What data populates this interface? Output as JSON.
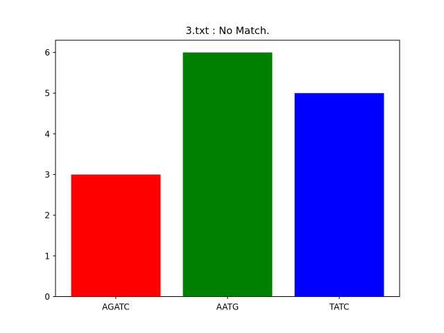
{
  "chart_data": {
    "type": "bar",
    "title": "3.txt : No Match.",
    "xlabel": "",
    "ylabel": "",
    "categories": [
      "AGATC",
      "AATG",
      "TATC"
    ],
    "values": [
      3,
      6,
      5
    ],
    "bar_colors": [
      "#ff0000",
      "#008000",
      "#0000ff"
    ],
    "ylim": [
      0,
      6.3
    ],
    "yticks": [
      0,
      1,
      2,
      3,
      4,
      5,
      6
    ],
    "grid": false,
    "legend": "none"
  }
}
